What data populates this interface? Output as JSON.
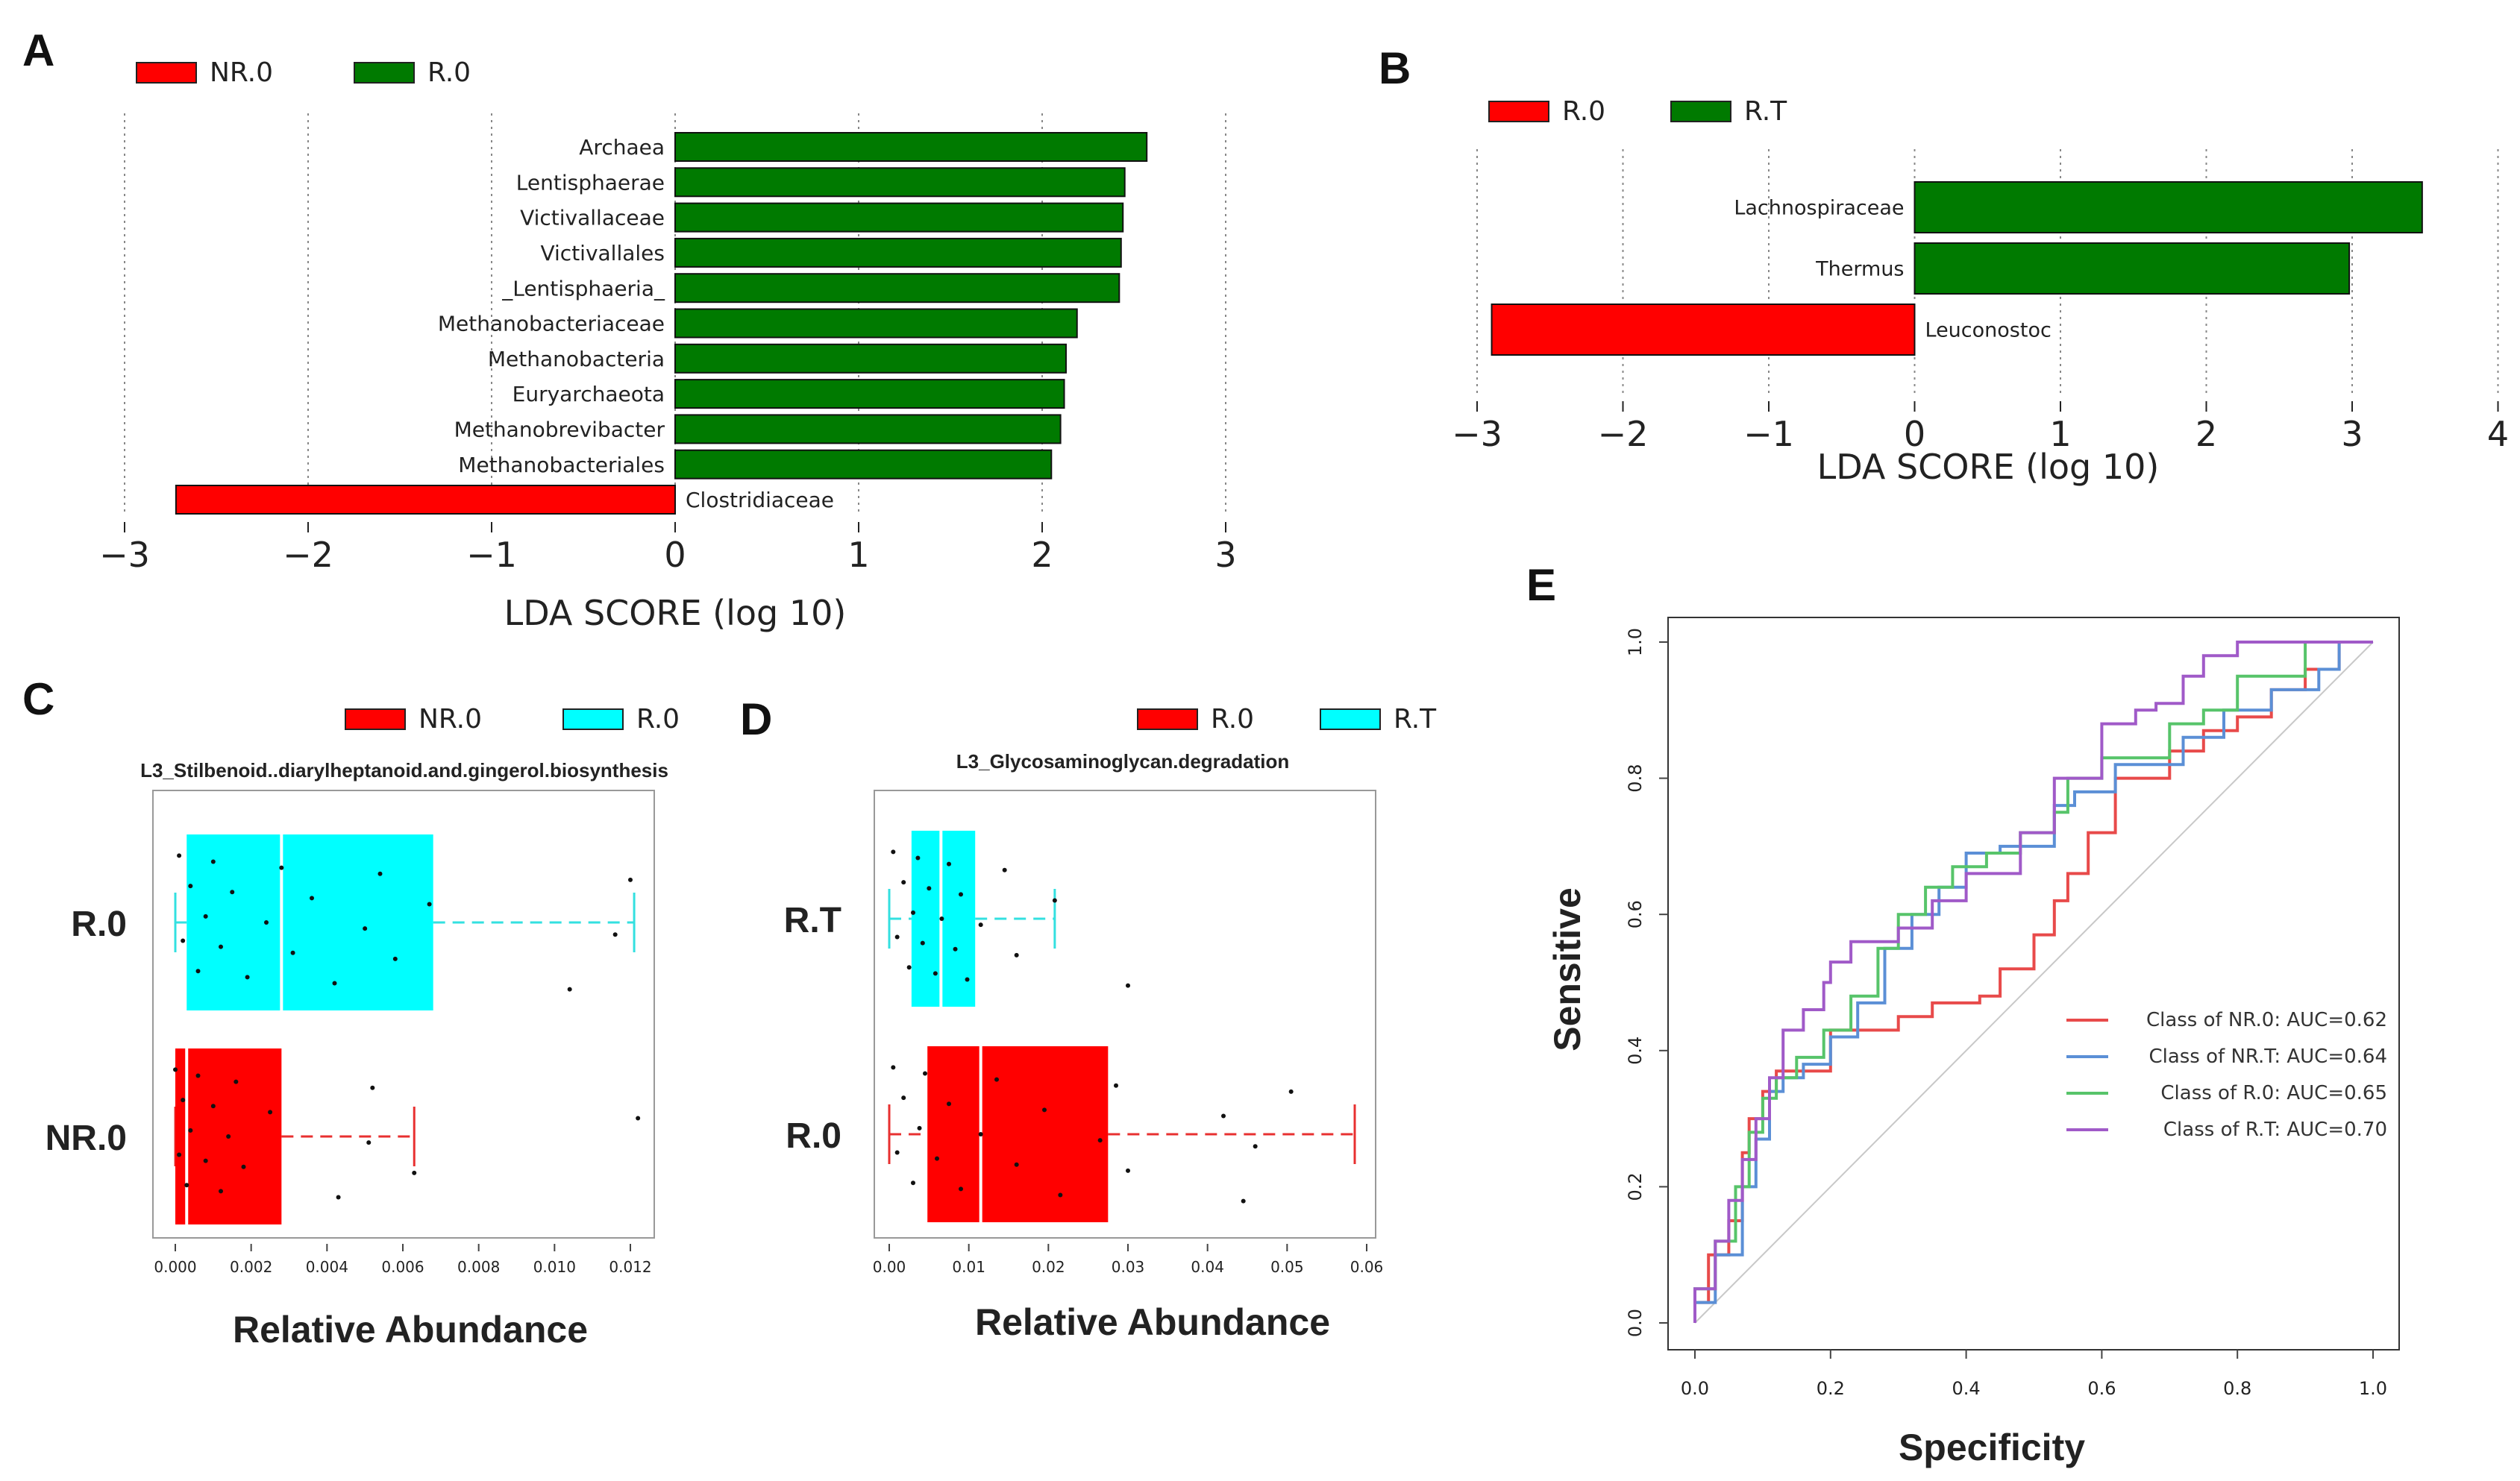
{
  "figure": {
    "panels": [
      "A",
      "B",
      "C",
      "D",
      "E"
    ]
  },
  "chart_data": [
    {
      "panel": "A",
      "type": "bar",
      "orientation": "horizontal",
      "title": "",
      "xlabel": "LDA SCORE (log 10)",
      "xlim": [
        -3,
        3
      ],
      "xticks": [
        "−3",
        "−2",
        "−1",
        "0",
        "1",
        "2",
        "3"
      ],
      "xtick_values": [
        -3,
        -2,
        -1,
        0,
        1,
        2,
        3
      ],
      "legend": [
        {
          "label": "NR.0",
          "color": "#ff0000"
        },
        {
          "label": "R.0",
          "color": "#007a00"
        }
      ],
      "categories": [
        "Archaea",
        "Lentisphaerae",
        "Victivallaceae",
        "Victivallales",
        "_Lentisphaeria_",
        "Methanobacteriaceae",
        "Methanobacteria",
        "Euryarchaeota",
        "Methanobrevibacter",
        "Methanobacteriales",
        "Clostridiaceae"
      ],
      "values": [
        2.57,
        2.45,
        2.44,
        2.43,
        2.42,
        2.19,
        2.13,
        2.12,
        2.1,
        2.05,
        -2.72
      ],
      "groups": [
        "R.0",
        "R.0",
        "R.0",
        "R.0",
        "R.0",
        "R.0",
        "R.0",
        "R.0",
        "R.0",
        "R.0",
        "NR.0"
      ]
    },
    {
      "panel": "B",
      "type": "bar",
      "orientation": "horizontal",
      "title": "",
      "xlabel": "LDA SCORE (log 10)",
      "xlim": [
        -3,
        4
      ],
      "xticks": [
        "−3",
        "−2",
        "−1",
        "0",
        "1",
        "2",
        "3",
        "4"
      ],
      "xtick_values": [
        -3,
        -2,
        -1,
        0,
        1,
        2,
        3,
        4
      ],
      "legend": [
        {
          "label": "R.0",
          "color": "#ff0000"
        },
        {
          "label": "R.T",
          "color": "#007a00"
        }
      ],
      "categories": [
        "Lachnospiraceae",
        "Thermus",
        "Leuconostoc"
      ],
      "values": [
        3.48,
        2.98,
        -2.9
      ],
      "groups": [
        "R.T",
        "R.T",
        "R.0"
      ]
    },
    {
      "panel": "C",
      "type": "box",
      "orientation": "horizontal",
      "title": "L3_Stilbenoid..diarylheptanoid.and.gingerol.biosynthesis",
      "xlabel": "Relative Abundance",
      "xlim": [
        0,
        0.012
      ],
      "xticks": [
        "0.000",
        "0.002",
        "0.004",
        "0.006",
        "0.008",
        "0.010",
        "0.012"
      ],
      "xtick_values": [
        0,
        0.002,
        0.004,
        0.006,
        0.008,
        0.01,
        0.012
      ],
      "legend": [
        {
          "label": "NR.0",
          "color": "#ff0000"
        },
        {
          "label": "R.0",
          "color": "#00ffff"
        }
      ],
      "series": [
        {
          "name": "R.0",
          "color": "#00ffff",
          "min": 0.0,
          "q1": 0.0003,
          "median": 0.0028,
          "q3": 0.0068,
          "max": 0.0121,
          "points": [
            0.0001,
            0.0002,
            0.0004,
            0.0006,
            0.0008,
            0.001,
            0.0012,
            0.0015,
            0.0019,
            0.0024,
            0.0028,
            0.0031,
            0.0036,
            0.0042,
            0.005,
            0.0054,
            0.0058,
            0.0067,
            0.0104,
            0.0116,
            0.012
          ]
        },
        {
          "name": "NR.0",
          "color": "#ff0000",
          "min": 0.0,
          "q1": 0.0,
          "median": 0.0003,
          "q3": 0.0028,
          "max": 0.0063,
          "points": [
            0.0,
            0.0001,
            0.0002,
            0.0003,
            0.0004,
            0.0006,
            0.0008,
            0.001,
            0.0012,
            0.0014,
            0.0016,
            0.0018,
            0.0025,
            0.0043,
            0.0051,
            0.0052,
            0.0063,
            0.0122
          ]
        }
      ]
    },
    {
      "panel": "D",
      "type": "box",
      "orientation": "horizontal",
      "title": "L3_Glycosaminoglycan.degradation",
      "xlabel": "Relative Abundance",
      "xlim": [
        0,
        0.06
      ],
      "xticks": [
        "0.00",
        "0.01",
        "0.02",
        "0.03",
        "0.04",
        "0.05",
        "0.06"
      ],
      "xtick_values": [
        0,
        0.01,
        0.02,
        0.03,
        0.04,
        0.05,
        0.06
      ],
      "legend": [
        {
          "label": "R.0",
          "color": "#ff0000"
        },
        {
          "label": "R.T",
          "color": "#00ffff"
        }
      ],
      "series": [
        {
          "name": "R.T",
          "color": "#00ffff",
          "min": 0.0,
          "q1": 0.0028,
          "median": 0.0065,
          "q3": 0.0108,
          "max": 0.0208,
          "points": [
            0.0005,
            0.001,
            0.0018,
            0.0025,
            0.003,
            0.0036,
            0.0042,
            0.005,
            0.0058,
            0.0066,
            0.0075,
            0.0083,
            0.009,
            0.0098,
            0.0115,
            0.0145,
            0.016,
            0.0208,
            0.03
          ]
        },
        {
          "name": "R.0",
          "color": "#ff0000",
          "min": 0.0,
          "q1": 0.0048,
          "median": 0.0115,
          "q3": 0.0275,
          "max": 0.0585,
          "points": [
            0.0005,
            0.001,
            0.0018,
            0.003,
            0.0038,
            0.0045,
            0.006,
            0.0075,
            0.009,
            0.0115,
            0.0135,
            0.016,
            0.0195,
            0.0215,
            0.0265,
            0.0285,
            0.03,
            0.042,
            0.0445,
            0.046,
            0.0505
          ]
        }
      ]
    },
    {
      "panel": "E",
      "type": "line",
      "title": "",
      "xlabel": "Specificity",
      "ylabel": "Sensitive",
      "xlim": [
        0,
        1
      ],
      "ylim": [
        0,
        1
      ],
      "xticks": [
        "0.0",
        "0.2",
        "0.4",
        "0.6",
        "0.8",
        "1.0"
      ],
      "xtick_values": [
        0,
        0.2,
        0.4,
        0.6,
        0.8,
        1.0
      ],
      "yticks": [
        "0.0",
        "0.2",
        "0.4",
        "0.6",
        "0.8",
        "1.0"
      ],
      "ytick_values": [
        0,
        0.2,
        0.4,
        0.6,
        0.8,
        1.0
      ],
      "series": [
        {
          "name": "Class of NR.0: AUC=0.62",
          "color": "#e84a4a",
          "x": [
            0,
            0,
            0.02,
            0.02,
            0.05,
            0.05,
            0.07,
            0.07,
            0.08,
            0.08,
            0.1,
            0.1,
            0.12,
            0.12,
            0.2,
            0.2,
            0.3,
            0.3,
            0.35,
            0.35,
            0.42,
            0.42,
            0.45,
            0.45,
            0.5,
            0.5,
            0.53,
            0.53,
            0.55,
            0.55,
            0.58,
            0.58,
            0.62,
            0.62,
            0.7,
            0.7,
            0.75,
            0.75,
            0.8,
            0.8,
            0.85,
            0.85,
            0.9,
            0.9,
            0.95,
            0.95,
            1.0
          ],
          "y": [
            0,
            0.03,
            0.03,
            0.1,
            0.1,
            0.15,
            0.15,
            0.25,
            0.25,
            0.3,
            0.3,
            0.34,
            0.34,
            0.37,
            0.37,
            0.43,
            0.43,
            0.45,
            0.45,
            0.47,
            0.47,
            0.48,
            0.48,
            0.52,
            0.52,
            0.57,
            0.57,
            0.62,
            0.62,
            0.66,
            0.66,
            0.72,
            0.72,
            0.8,
            0.8,
            0.84,
            0.84,
            0.87,
            0.87,
            0.89,
            0.89,
            0.93,
            0.93,
            0.96,
            0.96,
            1.0,
            1.0
          ]
        },
        {
          "name": "Class of NR.T: AUC=0.64",
          "color": "#5b8fd6",
          "x": [
            0,
            0,
            0.03,
            0.03,
            0.07,
            0.07,
            0.09,
            0.09,
            0.11,
            0.11,
            0.13,
            0.13,
            0.16,
            0.16,
            0.2,
            0.2,
            0.24,
            0.24,
            0.28,
            0.28,
            0.32,
            0.32,
            0.36,
            0.36,
            0.4,
            0.4,
            0.45,
            0.45,
            0.5,
            0.5,
            0.53,
            0.53,
            0.56,
            0.56,
            0.62,
            0.62,
            0.72,
            0.72,
            0.78,
            0.78,
            0.85,
            0.85,
            0.92,
            0.92,
            0.95,
            0.95,
            1.0
          ],
          "y": [
            0,
            0.03,
            0.03,
            0.1,
            0.1,
            0.2,
            0.2,
            0.27,
            0.27,
            0.34,
            0.34,
            0.36,
            0.36,
            0.38,
            0.38,
            0.42,
            0.42,
            0.47,
            0.47,
            0.55,
            0.55,
            0.6,
            0.6,
            0.64,
            0.64,
            0.69,
            0.69,
            0.7,
            0.7,
            0.7,
            0.7,
            0.76,
            0.76,
            0.78,
            0.78,
            0.82,
            0.82,
            0.86,
            0.86,
            0.9,
            0.9,
            0.93,
            0.93,
            0.96,
            0.96,
            1.0,
            1.0
          ]
        },
        {
          "name": "Class of R.0: AUC=0.65",
          "color": "#57c46a",
          "x": [
            0,
            0,
            0.03,
            0.03,
            0.06,
            0.06,
            0.08,
            0.08,
            0.1,
            0.1,
            0.12,
            0.12,
            0.15,
            0.15,
            0.19,
            0.19,
            0.23,
            0.23,
            0.27,
            0.27,
            0.3,
            0.3,
            0.34,
            0.34,
            0.38,
            0.38,
            0.43,
            0.43,
            0.48,
            0.48,
            0.53,
            0.53,
            0.55,
            0.55,
            0.6,
            0.6,
            0.7,
            0.7,
            0.75,
            0.75,
            0.8,
            0.8,
            0.9,
            0.9,
            1.0
          ],
          "y": [
            0,
            0.05,
            0.05,
            0.12,
            0.12,
            0.2,
            0.2,
            0.28,
            0.28,
            0.33,
            0.33,
            0.36,
            0.36,
            0.39,
            0.39,
            0.43,
            0.43,
            0.48,
            0.48,
            0.55,
            0.55,
            0.6,
            0.6,
            0.64,
            0.64,
            0.67,
            0.67,
            0.69,
            0.69,
            0.72,
            0.72,
            0.75,
            0.75,
            0.8,
            0.8,
            0.83,
            0.83,
            0.88,
            0.88,
            0.9,
            0.9,
            0.95,
            0.95,
            1.0,
            1.0
          ]
        },
        {
          "name": "Class of R.T: AUC=0.70",
          "color": "#a05ac8",
          "x": [
            0,
            0,
            0.03,
            0.03,
            0.05,
            0.05,
            0.07,
            0.07,
            0.09,
            0.09,
            0.11,
            0.11,
            0.13,
            0.13,
            0.16,
            0.16,
            0.19,
            0.19,
            0.2,
            0.2,
            0.23,
            0.23,
            0.3,
            0.3,
            0.35,
            0.35,
            0.4,
            0.4,
            0.48,
            0.48,
            0.53,
            0.53,
            0.6,
            0.6,
            0.65,
            0.65,
            0.68,
            0.68,
            0.72,
            0.72,
            0.75,
            0.75,
            0.8,
            0.8,
            1.0
          ],
          "y": [
            0,
            0.05,
            0.05,
            0.12,
            0.12,
            0.18,
            0.18,
            0.24,
            0.24,
            0.3,
            0.3,
            0.36,
            0.36,
            0.43,
            0.43,
            0.46,
            0.46,
            0.5,
            0.5,
            0.53,
            0.53,
            0.56,
            0.56,
            0.58,
            0.58,
            0.62,
            0.62,
            0.66,
            0.66,
            0.72,
            0.72,
            0.8,
            0.8,
            0.88,
            0.88,
            0.9,
            0.9,
            0.91,
            0.91,
            0.95,
            0.95,
            0.98,
            0.98,
            1.0,
            1.0
          ]
        }
      ]
    }
  ]
}
